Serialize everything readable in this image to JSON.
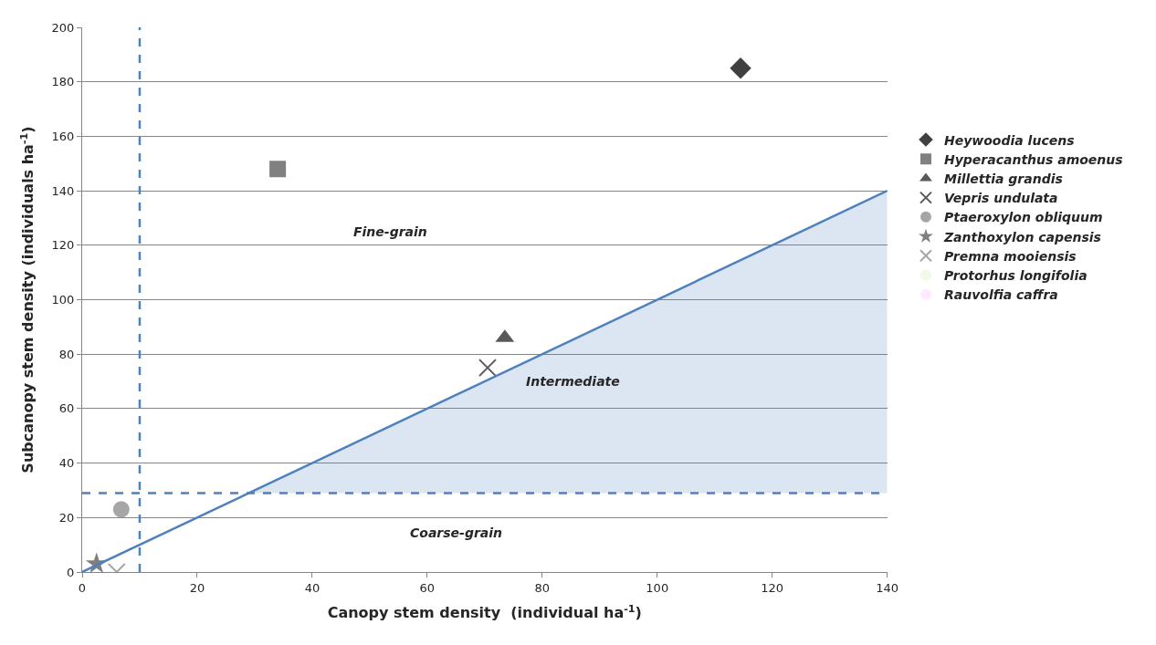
{
  "chart_data": {
    "type": "scatter",
    "xlabel": "Canopy stem density  (individual ha$^{-1}$)",
    "ylabel": "Subcanopy stem density (individuals ha$^{-1}$)",
    "xlim": [
      0,
      140
    ],
    "xticks": [
      0,
      20,
      40,
      60,
      80,
      100,
      120,
      140
    ],
    "ylim": [
      0,
      200
    ],
    "yticks": [
      0,
      20,
      40,
      60,
      80,
      100,
      120,
      140,
      160,
      180,
      200
    ],
    "grid": "y",
    "legend": "right",
    "series": [
      {
        "name": "Heywoodia lucens",
        "color": "#404040",
        "marker": "diamond",
        "x": [
          114.5
        ],
        "values": [
          185
        ]
      },
      {
        "name": "Hyperacanthus amoenus",
        "color": "#808080",
        "marker": "square",
        "x": [
          34
        ],
        "values": [
          148
        ]
      },
      {
        "name": "Millettia grandis",
        "color": "#595959",
        "marker": "triangle",
        "x": [
          73.5
        ],
        "values": [
          86
        ]
      },
      {
        "name": "Vepris undulata",
        "color": "#595959",
        "marker": "cross",
        "x": [
          70.5
        ],
        "values": [
          75
        ]
      },
      {
        "name": "Ptaeroxylon obliquum",
        "color": "#a6a6a6",
        "marker": "circle",
        "x": [
          6.8
        ],
        "values": [
          23
        ]
      },
      {
        "name": "Zanthoxylon capensis",
        "color": "#7f7f7f",
        "marker": "star",
        "x": [
          2.5
        ],
        "values": [
          3
        ]
      },
      {
        "name": "Premna mooiensis",
        "color": "#a6a6a6",
        "marker": "cross",
        "x": [
          6
        ],
        "values": [
          0
        ]
      },
      {
        "name": "Protorhus longifolia",
        "marker": "none",
        "x": [
          null
        ],
        "values": [
          null
        ]
      },
      {
        "name": "Rauvolfia caffra",
        "marker": "none",
        "x": [
          null
        ],
        "values": [
          null
        ]
      },
      {
        "type": "line",
        "color": "#4f81bd",
        "x": [
          0,
          29,
          140
        ],
        "values": [
          0,
          29,
          140
        ],
        "lower": [
          0,
          29,
          29
        ],
        "upper": [
          0,
          29,
          140
        ]
      }
    ],
    "ref_lines": [
      {
        "axis": "x",
        "value": 10,
        "color": "#4f81bd",
        "line_style": "dashed"
      },
      {
        "axis": "y",
        "value": 29,
        "color": "#4f81bd",
        "line_style": "dashed"
      }
    ],
    "annotations": [
      "Fine-grain",
      "Intermediate",
      "Coarse-grain"
    ]
  }
}
